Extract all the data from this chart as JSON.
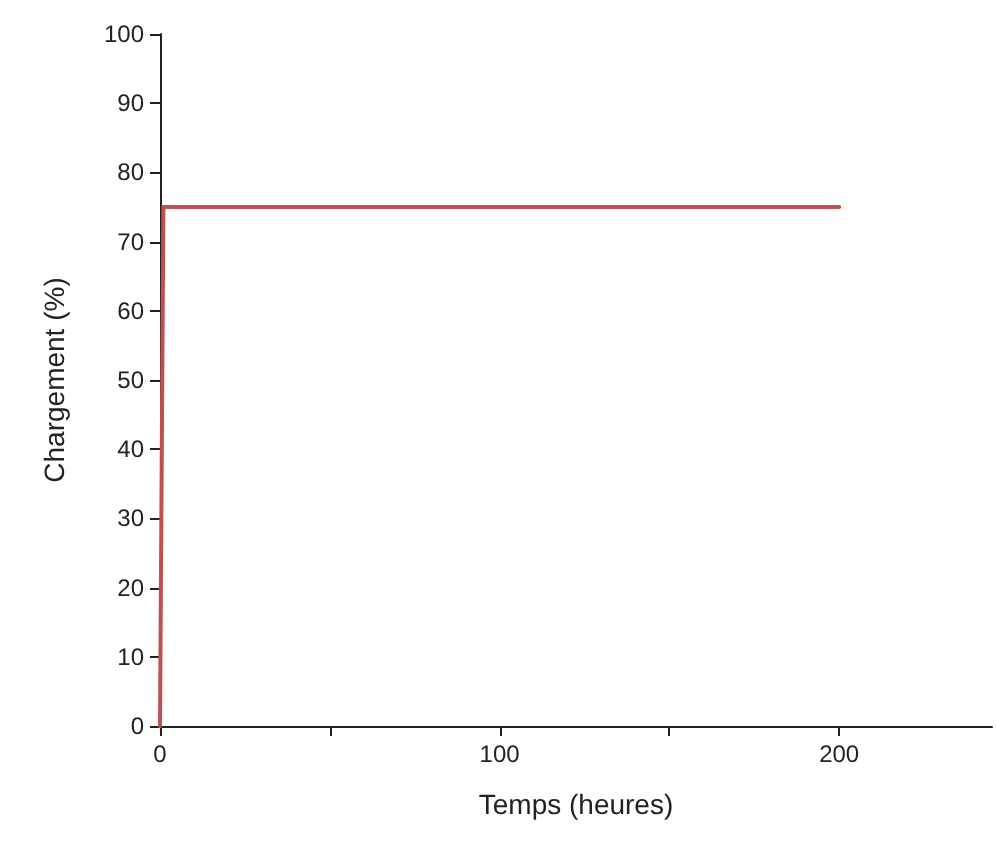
{
  "chart_data": {
    "type": "line",
    "xlabel": "Temps (heures)",
    "ylabel": "Chargement (%)",
    "x": [
      0,
      1,
      200
    ],
    "series": [
      {
        "color": "#c0504d",
        "values": [
          0,
          75,
          75
        ]
      }
    ],
    "xlim": [
      0,
      245
    ],
    "xticks": [
      0,
      {
        "value": 50,
        "label": null
      },
      100,
      {
        "value": 150,
        "label": null
      },
      200
    ],
    "ylim": [
      0,
      100
    ],
    "yticks": [
      0,
      10,
      20,
      30,
      40,
      50,
      60,
      70,
      80,
      90,
      100
    ],
    "grid": false,
    "marker": "none",
    "line_style": "solid"
  }
}
